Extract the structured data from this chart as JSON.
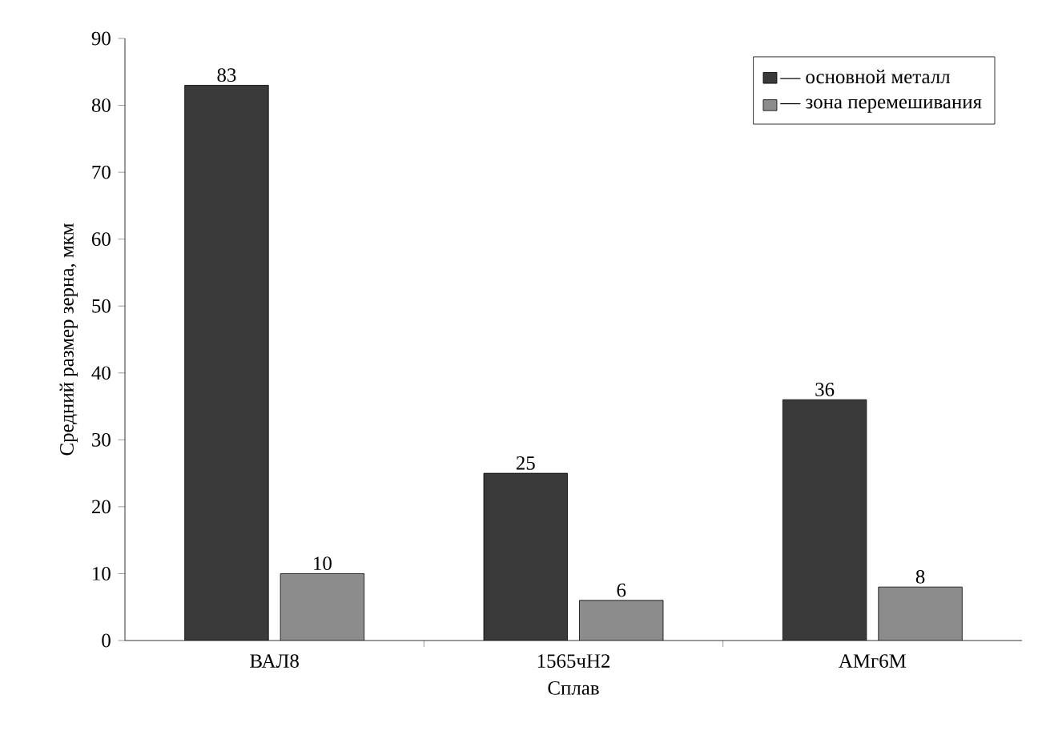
{
  "chart_data": {
    "type": "bar",
    "xlabel": "Сплав",
    "ylabel": "Средний размер зерна, мкм",
    "categories": [
      "ВАЛ8",
      "1565чН2",
      "АМг6М"
    ],
    "series": [
      {
        "name": "— основной металл",
        "color": "#3a3a3a",
        "values": [
          83,
          25,
          36
        ]
      },
      {
        "name": "— зона перемешивания",
        "color": "#8c8c8c",
        "values": [
          10,
          6,
          8
        ]
      }
    ],
    "ylim": [
      0,
      90
    ],
    "yticks": [
      0,
      10,
      20,
      30,
      40,
      50,
      60,
      70,
      80,
      90
    ],
    "data_labels": true,
    "grid": false,
    "legend": "top right"
  }
}
